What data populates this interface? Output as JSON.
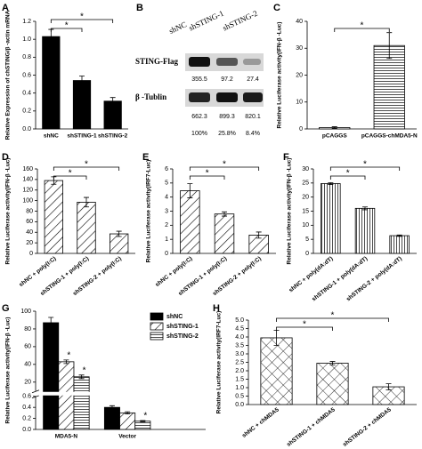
{
  "chart_data": [
    {
      "panel": "A",
      "type": "bar",
      "y_label": "Relative Expression of chSTING/β -actin mRNA",
      "categories": [
        "shNC",
        "shSTING-1",
        "shSTING-2"
      ],
      "values": [
        1.03,
        0.54,
        0.31
      ],
      "errors": [
        0.08,
        0.05,
        0.04
      ],
      "color": "#000000",
      "pattern": "solid",
      "ylim": [
        0,
        1.2
      ],
      "yticks": [
        {
          "value": 0,
          "label": "0.0"
        },
        0.2,
        0.4,
        0.6,
        0.8,
        {
          "value": 1,
          "label": "1.0"
        },
        1.2
      ],
      "significance": [
        {
          "pair": [
            0,
            1
          ],
          "label": "*"
        },
        {
          "pair": [
            0,
            2
          ],
          "label": "*"
        }
      ]
    },
    {
      "panel": "C",
      "type": "bar",
      "y_label": "Relative Luciferase activity(IFN-β -Luc)",
      "categories": [
        "pCAGGS",
        "pCAGGS-chMDA5-N"
      ],
      "values": [
        0.5,
        31
      ],
      "errors": [
        0.3,
        4.8
      ],
      "color": "#000000",
      "pattern": "hlines",
      "ylim": [
        0,
        40
      ],
      "yticks": [
        0,
        10,
        20,
        30,
        40
      ],
      "significance": [
        {
          "pair": [
            0,
            1
          ],
          "label": "*"
        }
      ]
    },
    {
      "panel": "D",
      "type": "bar",
      "y_label": "Relative Luciferase activity(IFN-β -Luc)",
      "categories": [
        "shNC + poly(I:C)",
        "shSTING-1 + poly(I:C)",
        "shSTING-2 + poly(I:C)"
      ],
      "values": [
        138,
        97,
        37
      ],
      "errors": [
        7,
        9,
        5
      ],
      "color": "#000000",
      "pattern": "diagonal",
      "ylim": [
        0,
        160
      ],
      "yticks": [
        0,
        20,
        40,
        60,
        80,
        100,
        120,
        140,
        160
      ],
      "significance": [
        {
          "pair": [
            0,
            1
          ],
          "label": "*"
        },
        {
          "pair": [
            0,
            2
          ],
          "label": "*"
        }
      ]
    },
    {
      "panel": "E",
      "type": "bar",
      "y_label": "Relative Luciferase activity(IRF7-Luc)",
      "categories": [
        "shNC + poly(I:C)",
        "shSTING-1 + poly(I:C)",
        "shSTING-2 + poly(I:C)"
      ],
      "values": [
        4.45,
        2.8,
        1.3
      ],
      "errors": [
        0.5,
        0.15,
        0.22
      ],
      "color": "#000000",
      "pattern": "diagonal",
      "ylim": [
        0,
        6
      ],
      "yticks": [
        0,
        1,
        2,
        3,
        4,
        5,
        6
      ],
      "significance": [
        {
          "pair": [
            0,
            1
          ],
          "label": "*"
        },
        {
          "pair": [
            0,
            2
          ],
          "label": "*"
        }
      ]
    },
    {
      "panel": "F",
      "type": "bar",
      "y_label": "Relative Luciferase activity(IFN-β -Luc)",
      "categories": [
        "shNC + poly(dA:dT)",
        "shSTING-1 + poly(dA:dT)",
        "shSTING-2 + poly(dA:dT)"
      ],
      "values": [
        24.8,
        16,
        6.3
      ],
      "errors": [
        0.3,
        0.5,
        0.25
      ],
      "color": "#000000",
      "pattern": "vlines",
      "ylim": [
        0,
        30
      ],
      "yticks": [
        0,
        5,
        10,
        15,
        20,
        25,
        30
      ],
      "significance": [
        {
          "pair": [
            0,
            1
          ],
          "label": "*"
        },
        {
          "pair": [
            0,
            2
          ],
          "label": "*"
        }
      ]
    },
    {
      "panel": "G",
      "type": "broken_bar",
      "y_label": "Relative Luciferase activity(IFN-β -Luc)",
      "categories": [
        "MDA5-N",
        "Vector"
      ],
      "series": [
        {
          "name": "shNC",
          "color": "#000000",
          "pattern": "solid",
          "values": [
            87,
            0.4
          ],
          "errors": [
            6,
            0.03
          ]
        },
        {
          "name": "shSTING-1",
          "color": "#000000",
          "pattern": "diagonal",
          "values": [
            43,
            0.3
          ],
          "errors": [
            2,
            0.02
          ]
        },
        {
          "name": "shSTING-2",
          "color": "#000000",
          "pattern": "hlines",
          "values": [
            26,
            0.15
          ],
          "errors": [
            2,
            0.01
          ]
        }
      ],
      "segments": [
        {
          "ylim": [
            0,
            0.6
          ],
          "yticks": [
            {
              "value": 0,
              "label": "0.0"
            },
            0.2,
            0.4,
            0.6
          ]
        },
        {
          "ylim": [
            10,
            100
          ],
          "yticks": [
            20,
            40,
            60,
            80,
            100
          ]
        }
      ],
      "legend": "top-right",
      "markers": [
        {
          "series": 1,
          "category": 0,
          "label": "*"
        },
        {
          "series": 2,
          "category": 0,
          "label": "*"
        },
        {
          "series": 2,
          "category": 1,
          "label": "*"
        }
      ]
    },
    {
      "panel": "H",
      "type": "bar",
      "y_label": "Relative Luciferase activity(IRF7-Luc)",
      "categories": [
        "shNC + chMDA5",
        "shSTING-1 + chMDA5",
        "shSTING-2 + chMDA5"
      ],
      "values": [
        3.95,
        2.45,
        1.05
      ],
      "errors": [
        0.45,
        0.1,
        0.18
      ],
      "color": "#000000",
      "pattern": "crosshatch",
      "ylim": [
        0,
        5
      ],
      "yticks": [
        {
          "value": 0,
          "label": "0.0"
        },
        0.5,
        {
          "value": 1,
          "label": "1.0"
        },
        1.5,
        {
          "value": 2,
          "label": "2.0"
        },
        2.5,
        {
          "value": 3,
          "label": "3.0"
        },
        3.5,
        {
          "value": 4,
          "label": "4.0"
        },
        4.5,
        {
          "value": 5,
          "label": "5.0"
        }
      ],
      "significance": [
        {
          "pair": [
            0,
            1
          ],
          "label": "*"
        },
        {
          "pair": [
            0,
            2
          ],
          "label": "*"
        }
      ]
    }
  ],
  "blot": {
    "panel": "B",
    "lanes": [
      "shNC",
      "shSTING-1",
      "shSTING-2"
    ],
    "rows": [
      {
        "label": "STING-Flag",
        "values": [
          "355.5",
          "97.2",
          "27.4"
        ]
      },
      {
        "label": "β -Tublin",
        "values": [
          "662.3",
          "899.3",
          "820.1"
        ]
      }
    ],
    "ratios": [
      "100%",
      "25.8%",
      "8.4%"
    ]
  }
}
